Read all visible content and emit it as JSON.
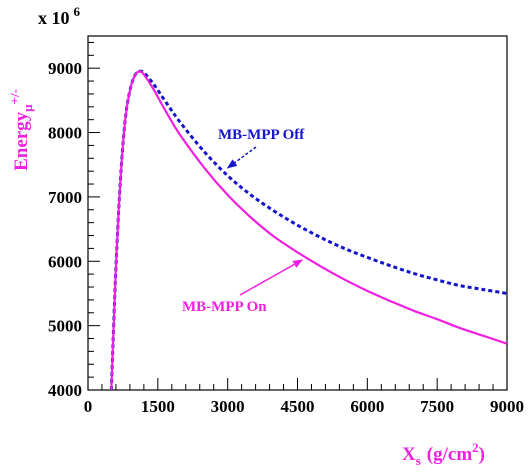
{
  "chart_data": {
    "type": "line",
    "xlim": [
      0,
      9000
    ],
    "ylim": [
      4000,
      9500
    ],
    "x_ticks": [
      0,
      1500,
      3000,
      4500,
      6000,
      7500,
      9000
    ],
    "x_tick_labels": [
      "0",
      "1500",
      "3000",
      "4500",
      "6000",
      "7500",
      "9000"
    ],
    "y_ticks": [
      4000,
      5000,
      6000,
      7000,
      8000,
      9000
    ],
    "y_tick_labels": [
      "4000",
      "5000",
      "6000",
      "7000",
      "8000",
      "9000"
    ],
    "xlabel_main": "X",
    "xlabel_sub": "s",
    "xlabel_units": "(g/cm",
    "xlabel_units_sup": "2",
    "xlabel_units_close": ")",
    "ylabel_main": "Energy",
    "ylabel_sub": "μ",
    "ylabel_sup": "+/-",
    "multiplier_base": "x 10",
    "multiplier_exp": "6",
    "grid": false,
    "series": [
      {
        "name": "MB-MPP Off",
        "color": "#1414cc",
        "style": "dotted",
        "x": [
          500,
          600,
          700,
          800,
          900,
          1000,
          1100,
          1200,
          1400,
          1600,
          1800,
          2000,
          2500,
          3000,
          3500,
          4000,
          4500,
          5000,
          5500,
          6000,
          6500,
          7000,
          7500,
          8000,
          8500,
          9000
        ],
        "y": [
          4000,
          5900,
          7300,
          8200,
          8650,
          8880,
          8950,
          8930,
          8760,
          8550,
          8340,
          8140,
          7700,
          7330,
          7030,
          6780,
          6560,
          6370,
          6200,
          6060,
          5930,
          5810,
          5710,
          5620,
          5560,
          5500
        ]
      },
      {
        "name": "MB-MPP On",
        "color": "#f020e0",
        "style": "solid",
        "x": [
          500,
          600,
          700,
          800,
          900,
          1000,
          1100,
          1200,
          1400,
          1600,
          1800,
          2000,
          2500,
          3000,
          3500,
          4000,
          4500,
          5000,
          5500,
          6000,
          6500,
          7000,
          7500,
          8000,
          8500,
          9000
        ],
        "y": [
          4000,
          5900,
          7300,
          8200,
          8650,
          8880,
          8950,
          8900,
          8680,
          8420,
          8170,
          7940,
          7450,
          7030,
          6680,
          6380,
          6140,
          5920,
          5720,
          5540,
          5380,
          5230,
          5100,
          4960,
          4840,
          4720
        ]
      }
    ],
    "annotations": [
      {
        "text": "MB-MPP Off",
        "color": "#1414cc",
        "arrow_to": [
          3000,
          7450
        ]
      },
      {
        "text": "MB-MPP On",
        "color": "#f020e0",
        "arrow_to": [
          4600,
          6020
        ]
      }
    ]
  }
}
